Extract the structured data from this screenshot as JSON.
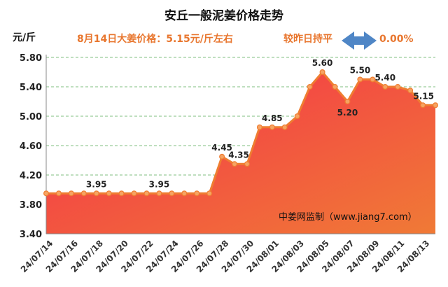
{
  "chart_data": {
    "type": "area",
    "title": "安丘一般泥姜价格走势",
    "ylabel": "元/斤",
    "info_price": "8月14日大姜价格：5.15元/斤左右",
    "info_change_label": "较昨日持平",
    "info_change_value": "0.00%",
    "watermark": "中姜网监制（www.jiang7.com）",
    "ylim": [
      3.4,
      5.8
    ],
    "yticks": [
      "3.40",
      "3.80",
      "4.20",
      "4.60",
      "5.00",
      "5.40",
      "5.80"
    ],
    "x": [
      "24/07/14",
      "24/07/15",
      "24/07/16",
      "24/07/17",
      "24/07/18",
      "24/07/19",
      "24/07/20",
      "24/07/21",
      "24/07/22",
      "24/07/23",
      "24/07/24",
      "24/07/25",
      "24/07/26",
      "24/07/27",
      "24/07/28",
      "24/07/29",
      "24/07/30",
      "24/07/31",
      "24/08/01",
      "24/08/02",
      "24/08/03",
      "24/08/04",
      "24/08/05",
      "24/08/06",
      "24/08/07",
      "24/08/08",
      "24/08/09",
      "24/08/10",
      "24/08/11",
      "24/08/12",
      "24/08/13",
      "24/08/14"
    ],
    "xtick_labels": [
      "24/07/14",
      "24/07/16",
      "24/07/18",
      "24/07/20",
      "24/07/22",
      "24/07/24",
      "24/07/26",
      "24/07/28",
      "24/07/30",
      "24/08/01",
      "24/08/03",
      "24/08/05",
      "24/08/07",
      "24/08/09",
      "24/08/11",
      "24/08/13"
    ],
    "series": [
      {
        "values": [
          3.95,
          3.95,
          3.95,
          3.95,
          3.95,
          3.95,
          3.95,
          3.95,
          3.95,
          3.95,
          3.95,
          3.95,
          3.95,
          3.95,
          4.45,
          4.35,
          4.35,
          4.85,
          4.85,
          4.85,
          5.0,
          5.4,
          5.6,
          5.4,
          5.2,
          5.5,
          5.5,
          5.4,
          5.4,
          5.35,
          5.15,
          5.15
        ]
      }
    ],
    "data_labels": [
      {
        "x": "24/07/18",
        "text": "3.95"
      },
      {
        "x": "24/07/23",
        "text": "3.95"
      },
      {
        "x": "24/07/28",
        "text": "4.45"
      },
      {
        "x": "24/07/29",
        "text": "4.35"
      },
      {
        "x": "24/08/01",
        "text": "4.85"
      },
      {
        "x": "24/08/05",
        "text": "5.60"
      },
      {
        "x": "24/08/07",
        "text": "5.20"
      },
      {
        "x": "24/08/08",
        "text": "5.50"
      },
      {
        "x": "24/08/10",
        "text": "5.40"
      },
      {
        "x": "24/08/14",
        "text": "5.15"
      }
    ],
    "grid": true,
    "colors": {
      "fill_top": "#f5304a",
      "fill_bottom": "#f07a36",
      "line": "#ef7d31",
      "marker": "#f6a463",
      "info_text": "#e8762e",
      "grid": "#7fbf7f",
      "arrow": "#4f86c6"
    }
  }
}
